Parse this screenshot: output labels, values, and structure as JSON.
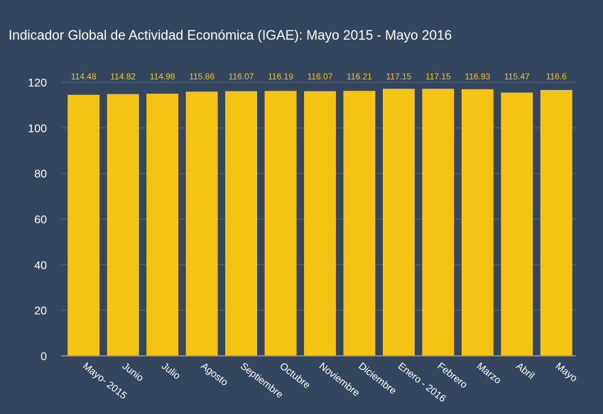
{
  "colors": {
    "background": "#34465d",
    "bar": "#f4c314",
    "data_label": "#f4c314",
    "gridline": "#56667a",
    "axis_line": "#8f9aa8",
    "text": "#ffffff"
  },
  "chart_data": {
    "type": "bar",
    "title": "Indicador Global de Actividad Económica (IGAE): Mayo 2015 - Mayo 2016",
    "xlabel": "",
    "ylabel": "",
    "categories": [
      "Mayo- 2015",
      "Junio",
      "Julio",
      "Agosto",
      "Septiembre",
      "Octubre",
      "Noviembre",
      "Diciembre",
      "Enero - 2016",
      "Febrero",
      "Marzo",
      "Abril",
      "Mayo"
    ],
    "values": [
      114.48,
      114.82,
      114.98,
      115.86,
      116.07,
      116.19,
      116.07,
      116.21,
      117.15,
      117.15,
      116.93,
      115.47,
      116.6
    ],
    "data_labels": [
      "114.48",
      "114.82",
      "114.98",
      "115.86",
      "116.07",
      "116.19",
      "116.07",
      "116.21",
      "117.15",
      "117.15",
      "116.93",
      "115.47",
      "116.6"
    ],
    "ylim": [
      0,
      120
    ],
    "yticks": [
      0,
      20,
      40,
      60,
      80,
      100,
      120
    ],
    "grid": true,
    "legend": "none"
  }
}
